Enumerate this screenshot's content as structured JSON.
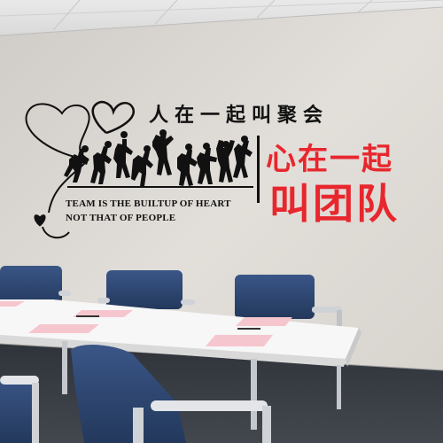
{
  "wall_decal": {
    "slogan_black": "人在一起叫聚会",
    "slogan_en_line1": "TEAM IS THE BUILTUP OF HEART",
    "slogan_en_line2": "NOT THAT OF PEOPLE",
    "slogan_red_line1": "心在一起",
    "slogan_red_line2": "叫团队"
  },
  "colors": {
    "wall": "#dcd8d2",
    "decal_black": "#111111",
    "decal_red": "#e8262e",
    "table_top": "#f7f7f7",
    "chair_blue": "#2c4470",
    "carpet": "#3b3f46",
    "paper_pink": "#f6c6ce"
  }
}
